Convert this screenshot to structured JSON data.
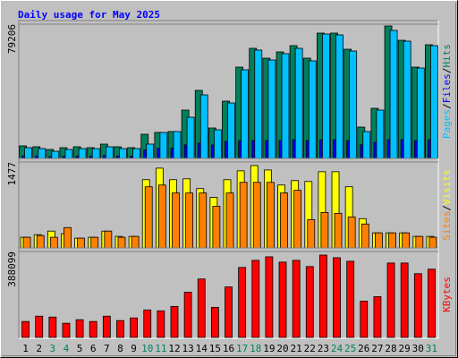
{
  "chart_data": [
    {
      "type": "bar",
      "title": "Daily usage for May 2025",
      "ylim": [
        0,
        79206
      ],
      "yticks": [
        79206
      ],
      "legend_separator": "/",
      "series": [
        {
          "name": "Hits",
          "color": "#00805c",
          "values": [
            7393,
            6865,
            5280,
            6336,
            6865,
            6336,
            8449,
            6865,
            6336,
            14257,
            15313,
            15841,
            28514,
            40131,
            17953,
            33795,
            53860,
            64949,
            59140,
            62837,
            66533,
            59140,
            73926,
            73926,
            64421,
            18481,
            29570,
            78150,
            69701,
            53860,
            67061
          ]
        },
        {
          "name": "Files",
          "color": "#0000ff",
          "values": [
            1500,
            1400,
            1100,
            1300,
            1400,
            1300,
            1700,
            1400,
            1300,
            5000,
            6000,
            6000,
            8000,
            9000,
            8000,
            10000,
            10500,
            10500,
            10500,
            10500,
            11000,
            10500,
            11000,
            11000,
            10500,
            8000,
            9500,
            11000,
            11000,
            10500,
            11000
          ]
        },
        {
          "name": "Pages",
          "color": "#00c0ff",
          "values": [
            6336,
            5808,
            4224,
            5280,
            5808,
            5808,
            6865,
            5808,
            5808,
            8449,
            15313,
            15841,
            24290,
            37491,
            16897,
            32738,
            52276,
            63893,
            58084,
            61781,
            64949,
            57556,
            73398,
            72870,
            63365,
            15841,
            28514,
            75510,
            69173,
            53332,
            66533
          ]
        }
      ]
    },
    {
      "type": "bar",
      "ylim": [
        0,
        1477
      ],
      "yticks": [
        1477
      ],
      "legend_separator": "/",
      "series": [
        {
          "name": "Visits",
          "color": "#ffff00",
          "values": [
            183,
            228,
            289,
            244,
            168,
            183,
            289,
            198,
            198,
            1173,
            1371,
            1173,
            1188,
            1020,
            868,
            1173,
            1325,
            1416,
            1340,
            1081,
            1157,
            1142,
            1310,
            1310,
            1051,
            503,
            259,
            259,
            259,
            198,
            198
          ]
        },
        {
          "name": "Sites",
          "color": "#ff8000",
          "values": [
            183,
            213,
            183,
            350,
            168,
            183,
            289,
            183,
            198,
            1051,
            1081,
            944,
            944,
            944,
            716,
            944,
            1127,
            1127,
            1127,
            944,
            990,
            487,
            609,
            594,
            533,
            411,
            259,
            259,
            259,
            198,
            183
          ]
        }
      ]
    },
    {
      "type": "bar",
      "ylim": [
        0,
        388099
      ],
      "yticks": [
        388099
      ],
      "categories": [
        "1",
        "2",
        "3",
        "4",
        "5",
        "6",
        "7",
        "8",
        "9",
        "10",
        "11",
        "12",
        "13",
        "14",
        "15",
        "16",
        "17",
        "18",
        "19",
        "20",
        "21",
        "22",
        "23",
        "24",
        "25",
        "26",
        "27",
        "28",
        "29",
        "30",
        "31"
      ],
      "category_colors": [
        "#000000",
        "#000000",
        "#00805c",
        "#00805c",
        "#000000",
        "#000000",
        "#000000",
        "#000000",
        "#000000",
        "#00805c",
        "#00805c",
        "#000000",
        "#000000",
        "#000000",
        "#000000",
        "#000000",
        "#00805c",
        "#00805c",
        "#000000",
        "#000000",
        "#000000",
        "#000000",
        "#000000",
        "#00805c",
        "#00805c",
        "#000000",
        "#000000",
        "#000000",
        "#000000",
        "#000000",
        "#00805c"
      ],
      "series": [
        {
          "name": "KBytes",
          "color": "#ff0000",
          "values": [
            72018,
            96024,
            92023,
            64016,
            80020,
            72018,
            96024,
            76019,
            88022,
            124031,
            120030,
            140035,
            204051,
            264066,
            136034,
            228057,
            316079,
            348087,
            364091,
            340085,
            348087,
            320080,
            372093,
            360090,
            344086,
            164041,
            184046,
            336084,
            336084,
            288072,
            308077
          ]
        }
      ]
    }
  ]
}
